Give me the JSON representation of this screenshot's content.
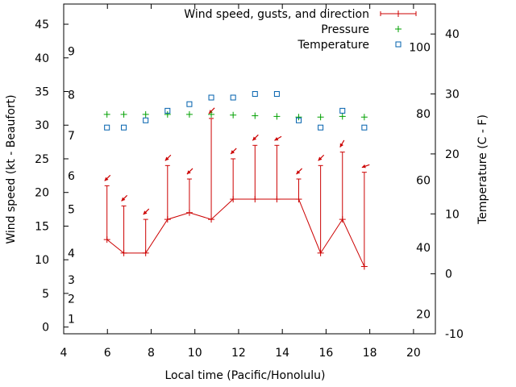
{
  "chart_data": {
    "type": "line",
    "title": "",
    "xlabel": "Local time (Pacific/Honolulu)",
    "ylabel_left": "Wind speed (kt - Beaufort)",
    "ylabel_right": "Temperature (C - F)",
    "xlim": [
      4,
      21
    ],
    "ylim_left": [
      -1,
      48
    ],
    "ylim_right": [
      -10,
      45
    ],
    "x_ticks": [
      "4",
      "6",
      "8",
      "10",
      "12",
      "14",
      "16",
      "18",
      "20"
    ],
    "y_left_ticks": [
      "0",
      "5",
      "10",
      "15",
      "20",
      "25",
      "30",
      "35",
      "40",
      "45"
    ],
    "y_right_celsius_ticks": [
      "-10",
      "0",
      "10",
      "20",
      "30",
      "40"
    ],
    "beaufort_labels": [
      {
        "text": "1",
        "at_kt": 1.2
      },
      {
        "text": "2",
        "at_kt": 4.2
      },
      {
        "text": "3",
        "at_kt": 7.0
      },
      {
        "text": "4",
        "at_kt": 11.0
      },
      {
        "text": "5",
        "at_kt": 17.5
      },
      {
        "text": "6",
        "at_kt": 22.5
      },
      {
        "text": "7",
        "at_kt": 28.5
      },
      {
        "text": "8",
        "at_kt": 34.5
      },
      {
        "text": "9",
        "at_kt": 41.0
      }
    ],
    "fahrenheit_labels": [
      {
        "text": "20",
        "at_c": -6.7
      },
      {
        "text": "40",
        "at_c": 4.4
      },
      {
        "text": "60",
        "at_c": 15.6
      },
      {
        "text": "80",
        "at_c": 26.7
      },
      {
        "text": "100",
        "at_c": 37.8
      }
    ],
    "legend": [
      "Wind speed, gusts, and direction",
      "Pressure",
      "Temperature"
    ],
    "legend_position": "top-right",
    "series": [
      {
        "name": "Wind speed, gusts, and direction",
        "color": "#cc0000",
        "x": [
          5.98,
          6.75,
          7.75,
          8.75,
          9.75,
          10.75,
          11.75,
          12.75,
          13.75,
          14.75,
          15.75,
          16.75,
          17.75
        ],
        "speed": [
          13,
          11,
          11,
          16,
          17,
          16,
          19,
          19,
          19,
          19,
          11,
          16,
          9
        ],
        "gust": [
          21,
          18,
          16,
          24,
          22,
          31,
          25,
          27,
          27,
          22,
          24,
          26,
          23
        ],
        "direction_deg": [
          45,
          45,
          45,
          45,
          45,
          45,
          45,
          45,
          60,
          45,
          45,
          30,
          70
        ]
      },
      {
        "name": "Pressure",
        "color": "#00a000",
        "x": [
          5.98,
          6.75,
          7.75,
          8.75,
          9.75,
          10.75,
          11.75,
          12.75,
          13.75,
          14.75,
          15.75,
          16.75,
          17.75
        ],
        "y_kt_axis": [
          31.6,
          31.6,
          31.6,
          31.6,
          31.6,
          31.6,
          31.5,
          31.4,
          31.3,
          31.2,
          31.2,
          31.3,
          31.2
        ]
      },
      {
        "name": "Temperature",
        "color": "#0060ad",
        "x": [
          5.98,
          6.75,
          7.75,
          8.75,
          9.75,
          10.75,
          11.75,
          12.75,
          13.75,
          14.75,
          15.75,
          16.75,
          17.75
        ],
        "celsius": [
          24.4,
          24.4,
          25.6,
          27.2,
          28.3,
          29.4,
          29.4,
          30.0,
          30.0,
          25.6,
          24.4,
          27.2,
          24.4
        ]
      }
    ]
  }
}
